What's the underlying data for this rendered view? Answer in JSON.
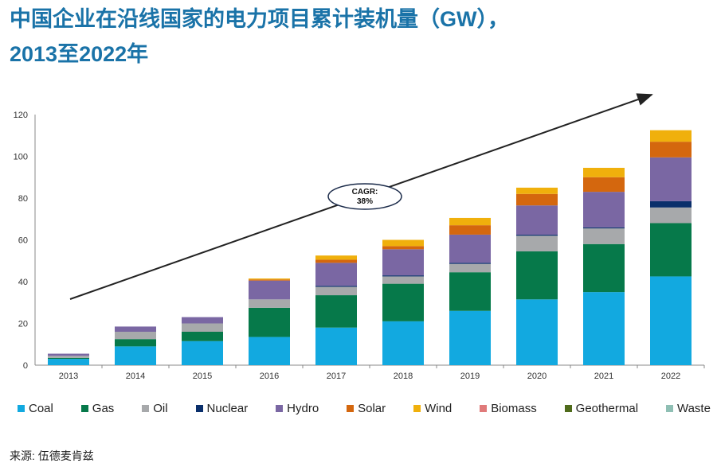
{
  "title_line1": "中国企业在沿线国家的电力项目累计装机量（GW），",
  "title_line2": "2013至2022年",
  "source": "来源: 伍德麦肯兹",
  "annotation": "CAGR:\n38%",
  "colors": {
    "Coal": "#12a9e0",
    "Gas": "#06794a",
    "Oil": "#a7a9ab",
    "Nuclear": "#0a2f6b",
    "Hydro": "#7a67a3",
    "Solar": "#d4670e",
    "Wind": "#f0b00c",
    "Biomass": "#e07a7a",
    "Geothermal": "#4f6b1b",
    "Waste": "#8fbfb4"
  },
  "chart_data": {
    "type": "bar",
    "stacked": true,
    "categories": [
      "2013",
      "2014",
      "2015",
      "2016",
      "2017",
      "2018",
      "2019",
      "2020",
      "2021",
      "2022"
    ],
    "ylim": [
      0,
      120
    ],
    "yticks": [
      0,
      20,
      40,
      60,
      80,
      100,
      120
    ],
    "series": [
      {
        "name": "Coal",
        "values": [
          3,
          9,
          11.5,
          13.5,
          18,
          21,
          26,
          31.5,
          35,
          42.5
        ]
      },
      {
        "name": "Gas",
        "values": [
          0.5,
          3.5,
          4.5,
          14,
          15.5,
          18,
          18.5,
          23,
          23,
          25.5
        ]
      },
      {
        "name": "Oil",
        "values": [
          1,
          3.5,
          4,
          4,
          4,
          3.5,
          4,
          7.5,
          7.5,
          7.5
        ]
      },
      {
        "name": "Nuclear",
        "values": [
          0,
          0,
          0,
          0,
          0.5,
          0.5,
          0.5,
          0.5,
          0.5,
          3
        ]
      },
      {
        "name": "Hydro",
        "values": [
          1,
          2.5,
          3,
          9,
          11,
          12.5,
          13.5,
          14,
          17,
          21
        ]
      },
      {
        "name": "Solar",
        "values": [
          0,
          0,
          0,
          0.5,
          1.5,
          1.5,
          4.5,
          5.5,
          7,
          7.5
        ]
      },
      {
        "name": "Wind",
        "values": [
          0,
          0,
          0,
          0.5,
          2,
          3,
          3.5,
          3,
          4.5,
          5.5
        ]
      },
      {
        "name": "Biomass",
        "values": [
          0,
          0,
          0,
          0,
          0,
          0,
          0,
          0,
          0,
          0
        ]
      },
      {
        "name": "Geothermal",
        "values": [
          0,
          0,
          0,
          0,
          0,
          0,
          0,
          0,
          0,
          0
        ]
      },
      {
        "name": "Waste",
        "values": [
          0,
          0,
          0,
          0,
          0,
          0,
          0,
          0,
          0,
          0
        ]
      }
    ]
  }
}
